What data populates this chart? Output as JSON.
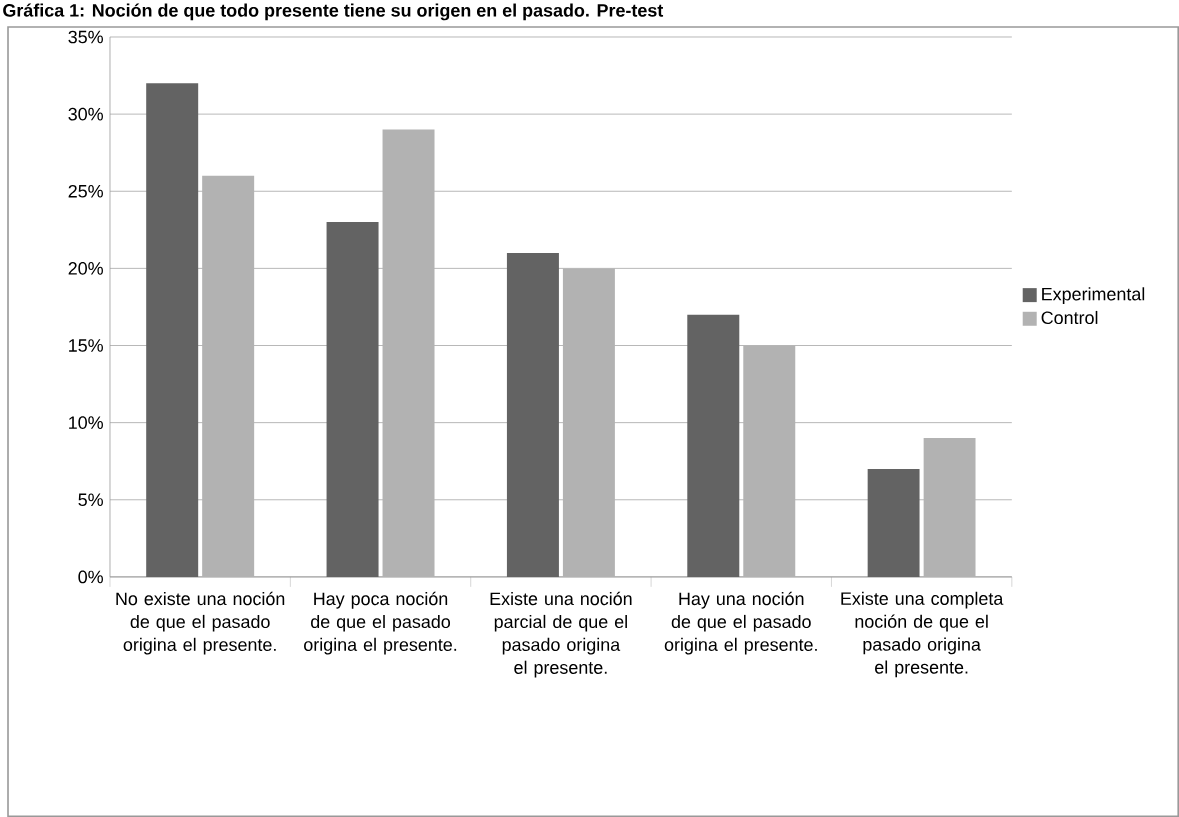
{
  "chart_data": {
    "type": "bar",
    "title": "Gráfica 1: Noción de que todo presente tiene su origen en el pasado. Pre-test",
    "categories": [
      "No existe una noción de que el pasado origina el presente.",
      "Hay poca noción de que el pasado origina el presente.",
      "Existe una noción parcial de que el pasado origina el presente.",
      "Hay una noción de que el pasado origina el presente.",
      "Existe una completa noción de que el pasado origina el presente."
    ],
    "series": [
      {
        "name": "Experimental",
        "color": "#636363",
        "values": [
          32,
          23,
          21,
          17,
          7
        ]
      },
      {
        "name": "Control",
        "color": "#b2b2b2",
        "values": [
          26,
          29,
          20,
          15,
          9
        ]
      }
    ],
    "ylim": [
      0,
      35
    ],
    "yticks": [
      {
        "value": 0,
        "label": "0%"
      },
      {
        "value": 5,
        "label": "5%"
      },
      {
        "value": 10,
        "label": "10%"
      },
      {
        "value": 15,
        "label": "15%"
      },
      {
        "value": 20,
        "label": "20%"
      },
      {
        "value": 25,
        "label": "25%"
      },
      {
        "value": 30,
        "label": "30%"
      },
      {
        "value": 35,
        "label": "35%"
      }
    ],
    "grid": "y",
    "legend": "right"
  }
}
